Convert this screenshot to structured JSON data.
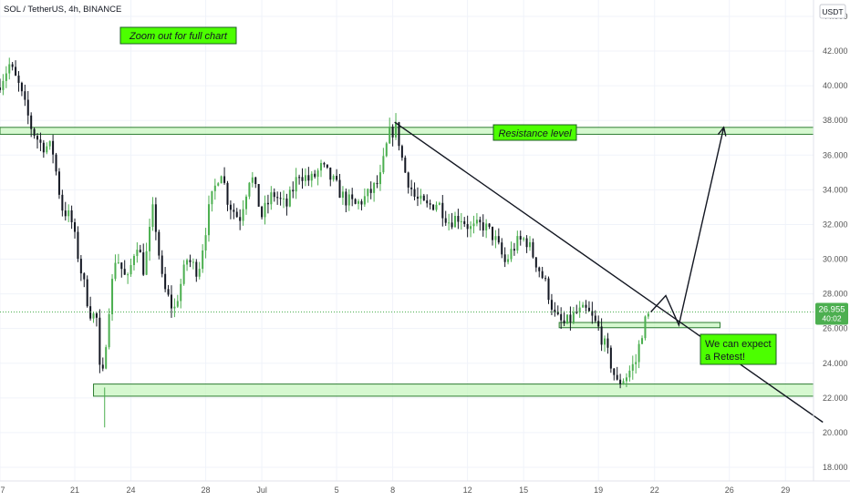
{
  "chart_data": {
    "type": "candlestick",
    "title": "SOL / TetherUS, 4h, BINANCE",
    "currency": "USDT",
    "ylim": [
      17,
      45
    ],
    "y_ticks": [
      "18.000",
      "20.000",
      "22.000",
      "24.000",
      "26.000",
      "28.000",
      "30.000",
      "32.000",
      "34.000",
      "36.000",
      "38.000",
      "40.000",
      "42.000",
      "44.000"
    ],
    "x_ticks": [
      {
        "label": "7",
        "day": 17
      },
      {
        "label": "21",
        "day": 21
      },
      {
        "label": "24",
        "day": 24
      },
      {
        "label": "28",
        "day": 28
      },
      {
        "label": "Jul",
        "day": 31
      },
      {
        "label": "5",
        "day": 35
      },
      {
        "label": "8",
        "day": 38
      },
      {
        "label": "12",
        "day": 42
      },
      {
        "label": "15",
        "day": 45
      },
      {
        "label": "19",
        "day": 49
      },
      {
        "label": "22",
        "day": 52
      },
      {
        "label": "26",
        "day": 56
      },
      {
        "label": "29",
        "day": 59
      }
    ],
    "xlim": [
      17,
      60.5
    ],
    "price_line": 26.955,
    "last_price": "26.955",
    "countdown": "40:02",
    "colors": {
      "up": "#4caf50",
      "down": "#131722",
      "zone_fill": "#c8f5c0",
      "zone_stroke": "#2e7d32",
      "label_bg": "#4cff00",
      "price_badge": "#4caf50"
    },
    "anchors": [
      [
        17.0,
        40.2
      ],
      [
        17.5,
        41.2
      ],
      [
        18.0,
        40.0
      ],
      [
        18.7,
        37.5
      ],
      [
        19.2,
        36.6
      ],
      [
        19.8,
        36.4
      ],
      [
        20.3,
        33.0
      ],
      [
        20.8,
        32.3
      ],
      [
        21.3,
        29.5
      ],
      [
        21.8,
        27.0
      ],
      [
        22.2,
        26.5
      ],
      [
        22.4,
        22.1
      ],
      [
        22.8,
        27.0
      ],
      [
        23.2,
        30.3
      ],
      [
        23.8,
        28.6
      ],
      [
        24.3,
        31.1
      ],
      [
        24.7,
        29.3
      ],
      [
        25.2,
        33.0
      ],
      [
        25.7,
        28.5
      ],
      [
        26.3,
        27.0
      ],
      [
        27.0,
        30.0
      ],
      [
        27.6,
        29.3
      ],
      [
        28.2,
        33.0
      ],
      [
        28.8,
        35.3
      ],
      [
        29.2,
        33.3
      ],
      [
        29.8,
        32.3
      ],
      [
        30.4,
        35.0
      ],
      [
        31.0,
        32.5
      ],
      [
        31.6,
        33.8
      ],
      [
        32.3,
        33.0
      ],
      [
        33.0,
        35.0
      ],
      [
        33.6,
        34.5
      ],
      [
        34.2,
        35.3
      ],
      [
        34.8,
        34.5
      ],
      [
        35.4,
        33.5
      ],
      [
        36.0,
        33.1
      ],
      [
        36.6,
        33.6
      ],
      [
        37.3,
        34.5
      ],
      [
        37.8,
        37.2
      ],
      [
        38.2,
        37.6
      ],
      [
        38.6,
        35.2
      ],
      [
        39.2,
        33.5
      ],
      [
        39.8,
        33.0
      ],
      [
        40.4,
        33.3
      ],
      [
        41.0,
        32.2
      ],
      [
        41.6,
        32.5
      ],
      [
        42.2,
        31.7
      ],
      [
        42.8,
        32.0
      ],
      [
        43.4,
        31.3
      ],
      [
        44.0,
        29.8
      ],
      [
        44.6,
        30.9
      ],
      [
        45.1,
        31.2
      ],
      [
        45.6,
        30.0
      ],
      [
        46.2,
        28.5
      ],
      [
        46.7,
        26.6
      ],
      [
        47.2,
        26.2
      ],
      [
        47.8,
        26.9
      ],
      [
        48.4,
        27.0
      ],
      [
        49.0,
        26.0
      ],
      [
        49.6,
        24.2
      ],
      [
        50.0,
        22.8
      ],
      [
        50.5,
        23.3
      ],
      [
        51.0,
        24.1
      ],
      [
        51.4,
        26.2
      ],
      [
        51.8,
        26.955
      ]
    ],
    "annotations": {
      "zoom_note": "Zoom out for full chart",
      "resistance_label": "Resistance level",
      "retest_note_line1": "We can expect",
      "retest_note_line2": "a Retest!"
    },
    "zones": {
      "resistance": [
        37.2,
        37.6
      ],
      "support": [
        22.1,
        22.8
      ],
      "retest": [
        26.05,
        26.35
      ]
    },
    "trendline": {
      "from": [
        38.1,
        37.9
      ],
      "to": [
        61.0,
        20.6
      ]
    },
    "projection": [
      [
        51.8,
        26.955
      ],
      [
        52.6,
        27.9
      ],
      [
        53.3,
        26.2
      ],
      [
        55.7,
        37.6
      ]
    ]
  }
}
